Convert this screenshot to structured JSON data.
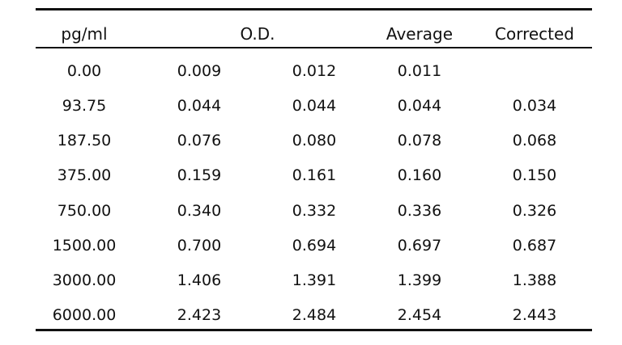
{
  "table": {
    "headers": {
      "concentration": "pg/ml",
      "od": "O.D.",
      "average": "Average",
      "corrected": "Corrected"
    },
    "rows": [
      {
        "conc": "0.00",
        "od1": "0.009",
        "od2": "0.012",
        "avg": "0.011",
        "corr": ""
      },
      {
        "conc": "93.75",
        "od1": "0.044",
        "od2": "0.044",
        "avg": "0.044",
        "corr": "0.034"
      },
      {
        "conc": "187.50",
        "od1": "0.076",
        "od2": "0.080",
        "avg": "0.078",
        "corr": "0.068"
      },
      {
        "conc": "375.00",
        "od1": "0.159",
        "od2": "0.161",
        "avg": "0.160",
        "corr": "0.150"
      },
      {
        "conc": "750.00",
        "od1": "0.340",
        "od2": "0.332",
        "avg": "0.336",
        "corr": "0.326"
      },
      {
        "conc": "1500.00",
        "od1": "0.700",
        "od2": "0.694",
        "avg": "0.697",
        "corr": "0.687"
      },
      {
        "conc": "3000.00",
        "od1": "1.406",
        "od2": "1.391",
        "avg": "1.399",
        "corr": "1.388"
      },
      {
        "conc": "6000.00",
        "od1": "2.423",
        "od2": "2.484",
        "avg": "2.454",
        "corr": "2.443"
      }
    ]
  }
}
